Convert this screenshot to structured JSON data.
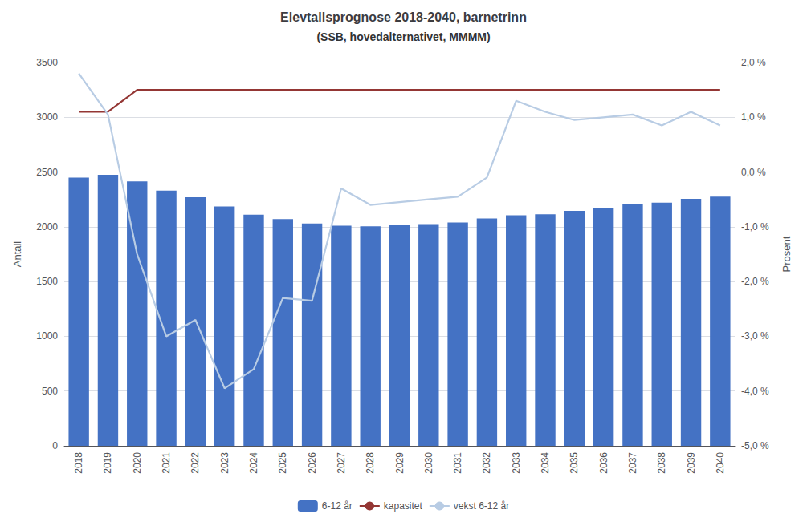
{
  "chart_data": {
    "type": "bar",
    "title": "Elevtallsprognose 2018-2040, barnetrinn",
    "subtitle": "(SSB, hovedalternativet, MMMM)",
    "ylabel": "Antall",
    "y2label": "Prosent",
    "categories": [
      "2018",
      "2019",
      "2020",
      "2021",
      "2022",
      "2023",
      "2024",
      "2025",
      "2026",
      "2027",
      "2028",
      "2029",
      "2030",
      "2031",
      "2032",
      "2033",
      "2034",
      "2035",
      "2036",
      "2037",
      "2038",
      "2039",
      "2040"
    ],
    "series": [
      {
        "name": "6-12 år",
        "type": "bar",
        "color": "#4472C4",
        "values": [
          2450,
          2475,
          2415,
          2330,
          2270,
          2185,
          2110,
          2070,
          2030,
          2010,
          2005,
          2015,
          2025,
          2040,
          2075,
          2105,
          2115,
          2145,
          2175,
          2205,
          2220,
          2255,
          2275
        ]
      },
      {
        "name": "kapasitet",
        "type": "line",
        "color": "#943634",
        "values": [
          3050,
          3050,
          3250,
          3250,
          3250,
          3250,
          3250,
          3250,
          3250,
          3250,
          3250,
          3250,
          3250,
          3250,
          3250,
          3250,
          3250,
          3250,
          3250,
          3250,
          3250,
          3250,
          3250
        ]
      },
      {
        "name": "vekst 6-12 år",
        "type": "line",
        "color": "#B8CCE4",
        "axis": "y2",
        "values": [
          1.8,
          1.05,
          -1.5,
          -3.0,
          -2.7,
          -3.95,
          -3.6,
          -2.3,
          -2.35,
          -0.3,
          -0.6,
          -0.55,
          -0.5,
          -0.45,
          -0.1,
          1.3,
          1.1,
          0.95,
          1.0,
          1.05,
          0.85,
          1.1,
          0.85
        ]
      }
    ],
    "ylim": [
      0,
      3500
    ],
    "yticks": [
      0,
      500,
      1000,
      1500,
      2000,
      2500,
      3000,
      3500
    ],
    "y2lim": [
      -5.0,
      2.0
    ],
    "y2ticks": [
      {
        "value": -5.0,
        "label": "-5,0 %"
      },
      {
        "value": -4.0,
        "label": "-4,0 %"
      },
      {
        "value": -3.0,
        "label": "-3,0 %"
      },
      {
        "value": -2.0,
        "label": "-2,0 %"
      },
      {
        "value": -1.0,
        "label": "-1,0 %"
      },
      {
        "value": 0.0,
        "label": "0,0 %"
      },
      {
        "value": 1.0,
        "label": "1,0 %"
      },
      {
        "value": 2.0,
        "label": "2,0 %"
      }
    ],
    "grid": true,
    "legend": "bottom"
  }
}
